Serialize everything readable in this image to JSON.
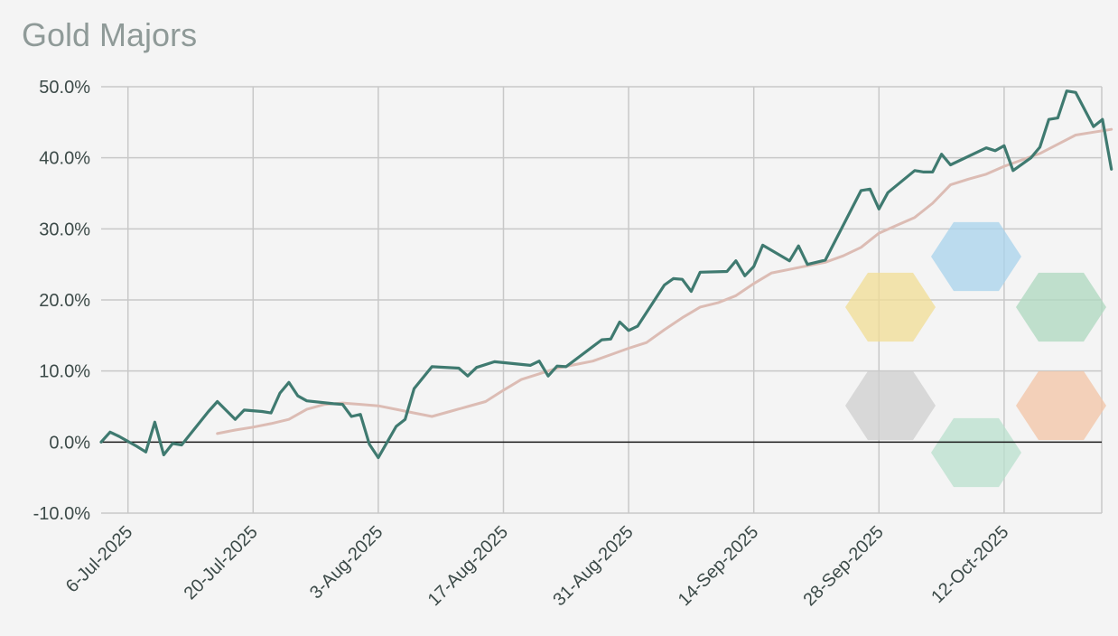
{
  "chart_data": {
    "type": "line",
    "title": "Gold Majors",
    "xlabel": "",
    "ylabel": "",
    "y_tick_labels": [
      "50.0%",
      "40.0%",
      "30.0%",
      "20.0%",
      "10.0%",
      "0.0%",
      "-10.0%"
    ],
    "y_ticks": [
      50,
      40,
      30,
      20,
      10,
      0,
      -10
    ],
    "ylim": [
      -10,
      50
    ],
    "xlim": [
      "2025-07-03",
      "2025-10-23"
    ],
    "x_tick_labels": [
      "6-Jul-2025",
      "20-Jul-2025",
      "3-Aug-2025",
      "17-Aug-2025",
      "31-Aug-2025",
      "14-Sep-2025",
      "28-Sep-2025",
      "12-Oct-2025"
    ],
    "x_ticks": [
      "2025-07-06",
      "2025-07-20",
      "2025-08-03",
      "2025-08-17",
      "2025-08-31",
      "2025-09-14",
      "2025-09-28",
      "2025-10-12"
    ],
    "grid": true,
    "colors": {
      "price": "#3f7a70",
      "average": "#dcbcb4",
      "zero_line": "#1a1a1a",
      "grid": "#c8c8c8"
    },
    "series": [
      {
        "points": [
          [
            "2025-07-03",
            0.0
          ],
          [
            "2025-07-04",
            1.4
          ],
          [
            "2025-07-05",
            0.8
          ],
          [
            "2025-07-07",
            -0.6
          ],
          [
            "2025-07-08",
            -1.4
          ],
          [
            "2025-07-09",
            2.8
          ],
          [
            "2025-07-10",
            -1.8
          ],
          [
            "2025-07-11",
            -0.2
          ],
          [
            "2025-07-12",
            -0.4
          ],
          [
            "2025-07-15",
            4.3
          ],
          [
            "2025-07-16",
            5.7
          ],
          [
            "2025-07-18",
            3.2
          ],
          [
            "2025-07-19",
            4.5
          ],
          [
            "2025-07-21",
            4.3
          ],
          [
            "2025-07-22",
            4.1
          ],
          [
            "2025-07-23",
            6.9
          ],
          [
            "2025-07-24",
            8.4
          ],
          [
            "2025-07-25",
            6.5
          ],
          [
            "2025-07-26",
            5.8
          ],
          [
            "2025-07-29",
            5.4
          ],
          [
            "2025-07-30",
            5.3
          ],
          [
            "2025-07-31",
            3.6
          ],
          [
            "2025-08-01",
            3.9
          ],
          [
            "2025-08-02",
            -0.3
          ],
          [
            "2025-08-03",
            -2.2
          ],
          [
            "2025-08-05",
            2.2
          ],
          [
            "2025-08-06",
            3.2
          ],
          [
            "2025-08-07",
            7.5
          ],
          [
            "2025-08-09",
            10.6
          ],
          [
            "2025-08-12",
            10.4
          ],
          [
            "2025-08-13",
            9.3
          ],
          [
            "2025-08-14",
            10.5
          ],
          [
            "2025-08-16",
            11.3
          ],
          [
            "2025-08-20",
            10.8
          ],
          [
            "2025-08-21",
            11.4
          ],
          [
            "2025-08-22",
            9.3
          ],
          [
            "2025-08-23",
            10.7
          ],
          [
            "2025-08-24",
            10.6
          ],
          [
            "2025-08-28",
            14.4
          ],
          [
            "2025-08-29",
            14.5
          ],
          [
            "2025-08-30",
            16.9
          ],
          [
            "2025-08-31",
            15.7
          ],
          [
            "2025-09-01",
            16.3
          ],
          [
            "2025-09-04",
            22.1
          ],
          [
            "2025-09-05",
            23.0
          ],
          [
            "2025-09-06",
            22.9
          ],
          [
            "2025-09-07",
            21.2
          ],
          [
            "2025-09-08",
            23.9
          ],
          [
            "2025-09-11",
            24.0
          ],
          [
            "2025-09-12",
            25.5
          ],
          [
            "2025-09-13",
            23.4
          ],
          [
            "2025-09-14",
            24.7
          ],
          [
            "2025-09-15",
            27.7
          ],
          [
            "2025-09-18",
            25.5
          ],
          [
            "2025-09-19",
            27.6
          ],
          [
            "2025-09-20",
            25.0
          ],
          [
            "2025-09-22",
            25.6
          ],
          [
            "2025-09-26",
            35.4
          ],
          [
            "2025-09-27",
            35.6
          ],
          [
            "2025-09-28",
            32.8
          ],
          [
            "2025-09-29",
            35.1
          ],
          [
            "2025-10-02",
            38.2
          ],
          [
            "2025-10-03",
            38.0
          ],
          [
            "2025-10-04",
            38.0
          ],
          [
            "2025-10-05",
            40.5
          ],
          [
            "2025-10-06",
            39.0
          ],
          [
            "2025-10-10",
            41.4
          ],
          [
            "2025-10-11",
            41.0
          ],
          [
            "2025-10-12",
            41.7
          ],
          [
            "2025-10-13",
            38.2
          ],
          [
            "2025-10-15",
            40.0
          ],
          [
            "2025-10-16",
            41.5
          ],
          [
            "2025-10-17",
            45.4
          ],
          [
            "2025-10-18",
            45.6
          ],
          [
            "2025-10-19",
            49.4
          ],
          [
            "2025-10-20",
            49.2
          ],
          [
            "2025-10-22",
            44.4
          ],
          [
            "2025-10-23",
            45.4
          ],
          [
            "2025-10-24",
            38.4
          ]
        ]
      },
      {
        "points": [
          [
            "2025-07-16",
            1.2
          ],
          [
            "2025-07-18",
            1.7
          ],
          [
            "2025-07-20",
            2.1
          ],
          [
            "2025-07-22",
            2.6
          ],
          [
            "2025-07-24",
            3.2
          ],
          [
            "2025-07-26",
            4.6
          ],
          [
            "2025-07-28",
            5.3
          ],
          [
            "2025-07-30",
            5.5
          ],
          [
            "2025-08-01",
            5.3
          ],
          [
            "2025-08-03",
            5.1
          ],
          [
            "2025-08-05",
            4.6
          ],
          [
            "2025-08-07",
            4.1
          ],
          [
            "2025-08-09",
            3.6
          ],
          [
            "2025-08-11",
            4.3
          ],
          [
            "2025-08-13",
            5.0
          ],
          [
            "2025-08-15",
            5.7
          ],
          [
            "2025-08-17",
            7.3
          ],
          [
            "2025-08-19",
            8.8
          ],
          [
            "2025-08-21",
            9.6
          ],
          [
            "2025-08-23",
            10.4
          ],
          [
            "2025-08-25",
            10.9
          ],
          [
            "2025-08-27",
            11.4
          ],
          [
            "2025-08-29",
            12.3
          ],
          [
            "2025-08-31",
            13.2
          ],
          [
            "2025-09-02",
            14.0
          ],
          [
            "2025-09-04",
            15.8
          ],
          [
            "2025-09-06",
            17.5
          ],
          [
            "2025-09-08",
            19.0
          ],
          [
            "2025-09-10",
            19.6
          ],
          [
            "2025-09-12",
            20.6
          ],
          [
            "2025-09-14",
            22.3
          ],
          [
            "2025-09-16",
            23.8
          ],
          [
            "2025-09-18",
            24.3
          ],
          [
            "2025-09-20",
            24.8
          ],
          [
            "2025-09-22",
            25.3
          ],
          [
            "2025-09-24",
            26.2
          ],
          [
            "2025-09-26",
            27.4
          ],
          [
            "2025-09-28",
            29.4
          ],
          [
            "2025-09-30",
            30.5
          ],
          [
            "2025-10-02",
            31.6
          ],
          [
            "2025-10-04",
            33.6
          ],
          [
            "2025-10-06",
            36.2
          ],
          [
            "2025-10-08",
            37.0
          ],
          [
            "2025-10-10",
            37.7
          ],
          [
            "2025-10-12",
            38.8
          ],
          [
            "2025-10-14",
            39.7
          ],
          [
            "2025-10-16",
            40.6
          ],
          [
            "2025-10-18",
            41.9
          ],
          [
            "2025-10-20",
            43.2
          ],
          [
            "2025-10-22",
            43.6
          ],
          [
            "2025-10-24",
            44.0
          ]
        ]
      }
    ],
    "watermark_hexagons": [
      {
        "color": "#f2dd94"
      },
      {
        "color": "#a8d3ec"
      },
      {
        "color": "#aed8bf"
      },
      {
        "color": "#cfcfcf"
      },
      {
        "color": "#b9e0cd"
      },
      {
        "color": "#f3c4a6"
      }
    ]
  }
}
